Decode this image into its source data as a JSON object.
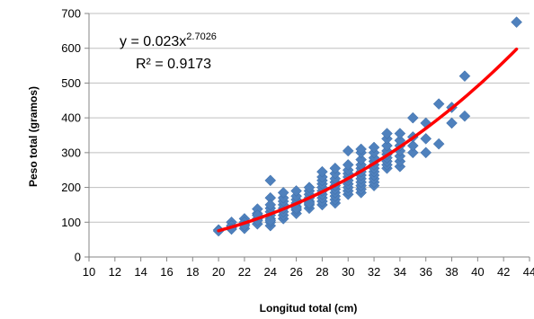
{
  "chart_data": {
    "type": "scatter",
    "title": "",
    "xlabel": "Longitud total (cm)",
    "ylabel": "Peso total (gramos)",
    "xlim": [
      10,
      44
    ],
    "ylim": [
      0,
      700
    ],
    "xticks": [
      10,
      12,
      14,
      16,
      18,
      20,
      22,
      24,
      26,
      28,
      30,
      32,
      34,
      36,
      38,
      40,
      42,
      44
    ],
    "yticks": [
      0,
      100,
      200,
      300,
      400,
      500,
      600,
      700
    ],
    "grid": "horizontal",
    "marker_color": "#4f81bd",
    "trend_color": "#ff0000",
    "annotations": {
      "equation_prefix": "y = 0.023x",
      "equation_exponent": "2.7026",
      "r_squared": "R² = 0.9173"
    },
    "trendline": {
      "type": "power",
      "a": 0.023,
      "b": 2.7026,
      "x_from": 20,
      "x_to": 43
    },
    "series": [
      {
        "points": [
          [
            20,
            78
          ],
          [
            20,
            75
          ],
          [
            21,
            85
          ],
          [
            21,
            100
          ],
          [
            21,
            90
          ],
          [
            21,
            80
          ],
          [
            22,
            82
          ],
          [
            22,
            95
          ],
          [
            22,
            110
          ],
          [
            22,
            100
          ],
          [
            22,
            90
          ],
          [
            23,
            95
          ],
          [
            23,
            110
          ],
          [
            23,
            125
          ],
          [
            23,
            138
          ],
          [
            23,
            105
          ],
          [
            23,
            120
          ],
          [
            24,
            220
          ],
          [
            24,
            170
          ],
          [
            24,
            90
          ],
          [
            24,
            100
          ],
          [
            24,
            110
          ],
          [
            24,
            120
          ],
          [
            24,
            130
          ],
          [
            24,
            140
          ],
          [
            24,
            150
          ],
          [
            24,
            105
          ],
          [
            25,
            110
          ],
          [
            25,
            120
          ],
          [
            25,
            130
          ],
          [
            25,
            140
          ],
          [
            25,
            150
          ],
          [
            25,
            160
          ],
          [
            25,
            170
          ],
          [
            25,
            185
          ],
          [
            26,
            125
          ],
          [
            26,
            135
          ],
          [
            26,
            145
          ],
          [
            26,
            155
          ],
          [
            26,
            165
          ],
          [
            26,
            175
          ],
          [
            26,
            190
          ],
          [
            26,
            140
          ],
          [
            27,
            140
          ],
          [
            27,
            150
          ],
          [
            27,
            160
          ],
          [
            27,
            170
          ],
          [
            27,
            180
          ],
          [
            27,
            190
          ],
          [
            27,
            200
          ],
          [
            27,
            155
          ],
          [
            28,
            150
          ],
          [
            28,
            160
          ],
          [
            28,
            170
          ],
          [
            28,
            180
          ],
          [
            28,
            190
          ],
          [
            28,
            200
          ],
          [
            28,
            210
          ],
          [
            28,
            220
          ],
          [
            28,
            230
          ],
          [
            28,
            245
          ],
          [
            29,
            155
          ],
          [
            29,
            165
          ],
          [
            29,
            175
          ],
          [
            29,
            185
          ],
          [
            29,
            195
          ],
          [
            29,
            205
          ],
          [
            29,
            215
          ],
          [
            29,
            225
          ],
          [
            29,
            240
          ],
          [
            29,
            255
          ],
          [
            30,
            180
          ],
          [
            30,
            190
          ],
          [
            30,
            200
          ],
          [
            30,
            210
          ],
          [
            30,
            220
          ],
          [
            30,
            230
          ],
          [
            30,
            240
          ],
          [
            30,
            250
          ],
          [
            30,
            265
          ],
          [
            30,
            305
          ],
          [
            31,
            185
          ],
          [
            31,
            195
          ],
          [
            31,
            205
          ],
          [
            31,
            215
          ],
          [
            31,
            225
          ],
          [
            31,
            235
          ],
          [
            31,
            245
          ],
          [
            31,
            255
          ],
          [
            31,
            265
          ],
          [
            31,
            280
          ],
          [
            31,
            300
          ],
          [
            31,
            310
          ],
          [
            32,
            205
          ],
          [
            32,
            215
          ],
          [
            32,
            225
          ],
          [
            32,
            235
          ],
          [
            32,
            245
          ],
          [
            32,
            255
          ],
          [
            32,
            265
          ],
          [
            32,
            275
          ],
          [
            32,
            285
          ],
          [
            32,
            300
          ],
          [
            32,
            315
          ],
          [
            33,
            255
          ],
          [
            33,
            265
          ],
          [
            33,
            275
          ],
          [
            33,
            285
          ],
          [
            33,
            295
          ],
          [
            33,
            305
          ],
          [
            33,
            320
          ],
          [
            33,
            340
          ],
          [
            33,
            355
          ],
          [
            34,
            260
          ],
          [
            34,
            275
          ],
          [
            34,
            290
          ],
          [
            34,
            305
          ],
          [
            34,
            320
          ],
          [
            34,
            335
          ],
          [
            34,
            355
          ],
          [
            35,
            300
          ],
          [
            35,
            320
          ],
          [
            35,
            345
          ],
          [
            35,
            400
          ],
          [
            36,
            300
          ],
          [
            36,
            340
          ],
          [
            36,
            385
          ],
          [
            37,
            325
          ],
          [
            37,
            440
          ],
          [
            38,
            385
          ],
          [
            38,
            430
          ],
          [
            39,
            405
          ],
          [
            39,
            520
          ],
          [
            43,
            675
          ]
        ]
      }
    ]
  }
}
